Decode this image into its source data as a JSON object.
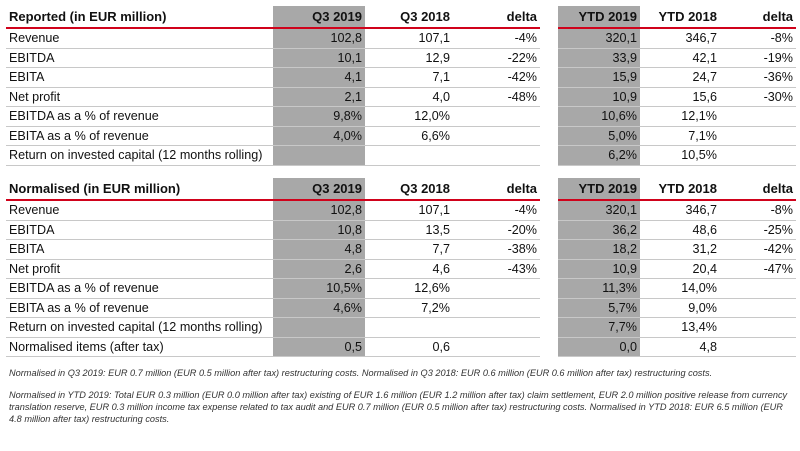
{
  "reported": {
    "header": {
      "title": "Reported (in EUR million)",
      "c1": "Q3 2019",
      "c2": "Q3 2018",
      "c3": "delta",
      "c4": "YTD 2019",
      "c5": "YTD 2018",
      "c6": "delta"
    },
    "rows": [
      {
        "label": "Revenue",
        "q3_2019": "102,8",
        "q3_2018": "107,1",
        "q_delta": "-4%",
        "ytd_2019": "320,1",
        "ytd_2018": "346,7",
        "ytd_delta": "-8%"
      },
      {
        "label": "EBITDA",
        "q3_2019": "10,1",
        "q3_2018": "12,9",
        "q_delta": "-22%",
        "ytd_2019": "33,9",
        "ytd_2018": "42,1",
        "ytd_delta": "-19%"
      },
      {
        "label": "EBITA",
        "q3_2019": "4,1",
        "q3_2018": "7,1",
        "q_delta": "-42%",
        "ytd_2019": "15,9",
        "ytd_2018": "24,7",
        "ytd_delta": "-36%"
      },
      {
        "label": "Net profit",
        "q3_2019": "2,1",
        "q3_2018": "4,0",
        "q_delta": "-48%",
        "ytd_2019": "10,9",
        "ytd_2018": "15,6",
        "ytd_delta": "-30%"
      },
      {
        "label": "EBITDA as a % of revenue",
        "q3_2019": "9,8%",
        "q3_2018": "12,0%",
        "q_delta": "",
        "ytd_2019": "10,6%",
        "ytd_2018": "12,1%",
        "ytd_delta": ""
      },
      {
        "label": "EBITA as a % of revenue",
        "q3_2019": "4,0%",
        "q3_2018": "6,6%",
        "q_delta": "",
        "ytd_2019": "5,0%",
        "ytd_2018": "7,1%",
        "ytd_delta": ""
      },
      {
        "label": "Return on invested capital (12 months rolling)",
        "q3_2019": "",
        "q3_2018": "",
        "q_delta": "",
        "ytd_2019": "6,2%",
        "ytd_2018": "10,5%",
        "ytd_delta": ""
      }
    ]
  },
  "normalised": {
    "header": {
      "title": "Normalised (in EUR million)",
      "c1": "Q3 2019",
      "c2": "Q3 2018",
      "c3": "delta",
      "c4": "YTD 2019",
      "c5": "YTD 2018",
      "c6": "delta"
    },
    "rows": [
      {
        "label": "Revenue",
        "q3_2019": "102,8",
        "q3_2018": "107,1",
        "q_delta": "-4%",
        "ytd_2019": "320,1",
        "ytd_2018": "346,7",
        "ytd_delta": "-8%"
      },
      {
        "label": "EBITDA",
        "q3_2019": "10,8",
        "q3_2018": "13,5",
        "q_delta": "-20%",
        "ytd_2019": "36,2",
        "ytd_2018": "48,6",
        "ytd_delta": "-25%"
      },
      {
        "label": "EBITA",
        "q3_2019": "4,8",
        "q3_2018": "7,7",
        "q_delta": "-38%",
        "ytd_2019": "18,2",
        "ytd_2018": "31,2",
        "ytd_delta": "-42%"
      },
      {
        "label": "Net profit",
        "q3_2019": "2,6",
        "q3_2018": "4,6",
        "q_delta": "-43%",
        "ytd_2019": "10,9",
        "ytd_2018": "20,4",
        "ytd_delta": "-47%"
      },
      {
        "label": "EBITDA as a % of revenue",
        "q3_2019": "10,5%",
        "q3_2018": "12,6%",
        "q_delta": "",
        "ytd_2019": "11,3%",
        "ytd_2018": "14,0%",
        "ytd_delta": ""
      },
      {
        "label": "EBITA as a % of revenue",
        "q3_2019": "4,6%",
        "q3_2018": "7,2%",
        "q_delta": "",
        "ytd_2019": "5,7%",
        "ytd_2018": "9,0%",
        "ytd_delta": ""
      },
      {
        "label": "Return on invested capital (12 months rolling)",
        "q3_2019": "",
        "q3_2018": "",
        "q_delta": "",
        "ytd_2019": "7,7%",
        "ytd_2018": "13,4%",
        "ytd_delta": ""
      },
      {
        "label": "Normalised items (after tax)",
        "q3_2019": "0,5",
        "q3_2018": "0,6",
        "q_delta": "",
        "ytd_2019": "0,0",
        "ytd_2018": "4,8",
        "ytd_delta": ""
      }
    ]
  },
  "notes": {
    "note_1": "Normalised in Q3 2019: EUR 0.7 million (EUR 0.5 million after tax) restructuring costs. Normalised in Q3 2018: EUR 0.6 million (EUR 0.6 million after tax) restructuring costs.",
    "note_2": "Normalised in YTD 2019: Total EUR 0.3 million (EUR 0.0 million after tax) existing of EUR 1.6 million (EUR 1.2 million after tax) claim settlement, EUR 2.0 million positive release from currency translation reserve, EUR 0.3 million income tax expense related to tax audit and EUR 0.7 million (EUR 0.5 million after tax) restructuring costs. Normalised in YTD 2018: EUR 6.5 million (EUR 4.8 million after tax) restructuring costs."
  },
  "colors": {
    "accent_rule": "#d0021b",
    "shaded_column": "#a8a8a8"
  }
}
